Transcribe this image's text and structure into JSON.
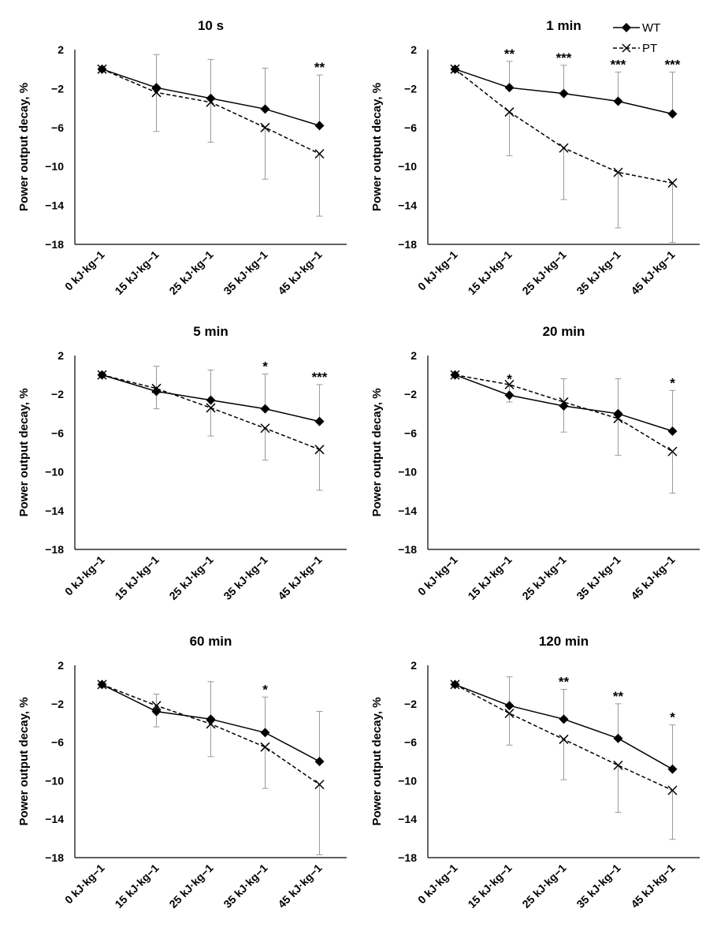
{
  "legend": {
    "wt": "WT",
    "pt": "PT"
  },
  "chart_data": [
    {
      "type": "line",
      "title": "10 s",
      "ylabel": "Power output decay, %",
      "categories": [
        "0 kJ·kg−1",
        "15 kJ·kg−1",
        "25 kJ·kg−1",
        "35 kJ·kg−1",
        "45 kJ·kg−1"
      ],
      "yticks": [
        "2",
        "−2",
        "−6",
        "−10",
        "−14",
        "−18"
      ],
      "ylim": [
        -18,
        2
      ],
      "series": [
        {
          "name": "WT",
          "values": [
            0,
            -1.9,
            -3.0,
            -4.1,
            -5.8
          ],
          "err": [
            0,
            3.4,
            4.0,
            4.2,
            5.2
          ]
        },
        {
          "name": "PT",
          "values": [
            0,
            -2.4,
            -3.4,
            -6.0,
            -8.7
          ],
          "err": [
            0,
            4.0,
            4.1,
            5.3,
            6.4
          ]
        }
      ],
      "significance": [
        "",
        "",
        "",
        "",
        "**"
      ]
    },
    {
      "type": "line",
      "title": "1 min",
      "ylabel": "Power output decay, %",
      "categories": [
        "0 kJ·kg−1",
        "15 kJ·kg−1",
        "25 kJ·kg−1",
        "35 kJ·kg−1",
        "45 kJ·kg−1"
      ],
      "yticks": [
        "2",
        "−2",
        "−6",
        "−10",
        "−14",
        "−18"
      ],
      "ylim": [
        -18,
        2
      ],
      "series": [
        {
          "name": "WT",
          "values": [
            0,
            -1.9,
            -2.5,
            -3.3,
            -4.6
          ],
          "err": [
            0,
            2.7,
            2.9,
            3.0,
            4.3
          ]
        },
        {
          "name": "PT",
          "values": [
            0,
            -4.4,
            -8.1,
            -10.6,
            -11.7
          ],
          "err": [
            0,
            4.5,
            5.3,
            5.7,
            6.1
          ]
        }
      ],
      "significance": [
        "",
        "**",
        "***",
        "***",
        "***"
      ]
    },
    {
      "type": "line",
      "title": "5 min",
      "ylabel": "Power output decay, %",
      "categories": [
        "0 kJ·kg−1",
        "15 kJ·kg−1",
        "25 kJ·kg−1",
        "35 kJ·kg−1",
        "45 kJ·kg−1"
      ],
      "yticks": [
        "2",
        "−2",
        "−6",
        "−10",
        "−14",
        "−18"
      ],
      "ylim": [
        -18,
        2
      ],
      "series": [
        {
          "name": "WT",
          "values": [
            0,
            -1.7,
            -2.6,
            -3.5,
            -4.8
          ],
          "err": [
            0,
            2.6,
            3.1,
            3.6,
            3.8
          ]
        },
        {
          "name": "PT",
          "values": [
            0,
            -1.4,
            -3.4,
            -5.5,
            -7.7
          ],
          "err": [
            0,
            2.1,
            2.9,
            3.3,
            4.2
          ]
        }
      ],
      "significance": [
        "",
        "",
        "",
        "*",
        "***"
      ]
    },
    {
      "type": "line",
      "title": "20 min",
      "ylabel": "Power output decay, %",
      "categories": [
        "0 kJ·kg−1",
        "15 kJ·kg−1",
        "25 kJ·kg−1",
        "35 kJ·kg−1",
        "45 kJ·kg−1"
      ],
      "yticks": [
        "2",
        "−2",
        "−6",
        "−10",
        "−14",
        "−18"
      ],
      "ylim": [
        -18,
        2
      ],
      "series": [
        {
          "name": "WT",
          "values": [
            0,
            -2.1,
            -3.2,
            -4.0,
            -5.8
          ],
          "err": [
            0,
            0.9,
            2.8,
            3.6,
            4.2
          ]
        },
        {
          "name": "PT",
          "values": [
            0,
            -1.0,
            -2.8,
            -4.5,
            -7.9
          ],
          "err": [
            0,
            1.8,
            3.1,
            3.8,
            4.3
          ]
        }
      ],
      "significance": [
        "",
        "*",
        "",
        "",
        "*"
      ]
    },
    {
      "type": "line",
      "title": "60 min",
      "ylabel": "Power output decay, %",
      "categories": [
        "0 kJ·kg−1",
        "15 kJ·kg−1",
        "25 kJ·kg−1",
        "35 kJ·kg−1",
        "45 kJ·kg−1"
      ],
      "yticks": [
        "2",
        "−2",
        "−6",
        "−10",
        "−14",
        "−18"
      ],
      "ylim": [
        -18,
        2
      ],
      "series": [
        {
          "name": "WT",
          "values": [
            0,
            -2.8,
            -3.6,
            -5.0,
            -8.0
          ],
          "err": [
            0,
            1.8,
            3.9,
            3.7,
            5.2
          ]
        },
        {
          "name": "PT",
          "values": [
            0,
            -2.2,
            -4.1,
            -6.5,
            -10.4
          ],
          "err": [
            0,
            2.2,
            3.4,
            4.3,
            7.3
          ]
        }
      ],
      "significance": [
        "",
        "",
        "",
        "*",
        ""
      ]
    },
    {
      "type": "line",
      "title": "120 min",
      "ylabel": "Power output decay, %",
      "categories": [
        "0 kJ·kg−1",
        "15 kJ·kg−1",
        "25 kJ·kg−1",
        "35 kJ·kg−1",
        "45 kJ·kg−1"
      ],
      "yticks": [
        "2",
        "−2",
        "−6",
        "−10",
        "−14",
        "−18"
      ],
      "ylim": [
        -18,
        2
      ],
      "series": [
        {
          "name": "WT",
          "values": [
            0,
            -2.2,
            -3.6,
            -5.6,
            -8.8
          ],
          "err": [
            0,
            3.0,
            3.1,
            3.6,
            4.6
          ]
        },
        {
          "name": "PT",
          "values": [
            0,
            -3.0,
            -5.7,
            -8.4,
            -11.0
          ],
          "err": [
            0,
            3.3,
            4.2,
            4.9,
            5.1
          ]
        }
      ],
      "significance": [
        "",
        "",
        "**",
        "**",
        "*"
      ]
    }
  ]
}
